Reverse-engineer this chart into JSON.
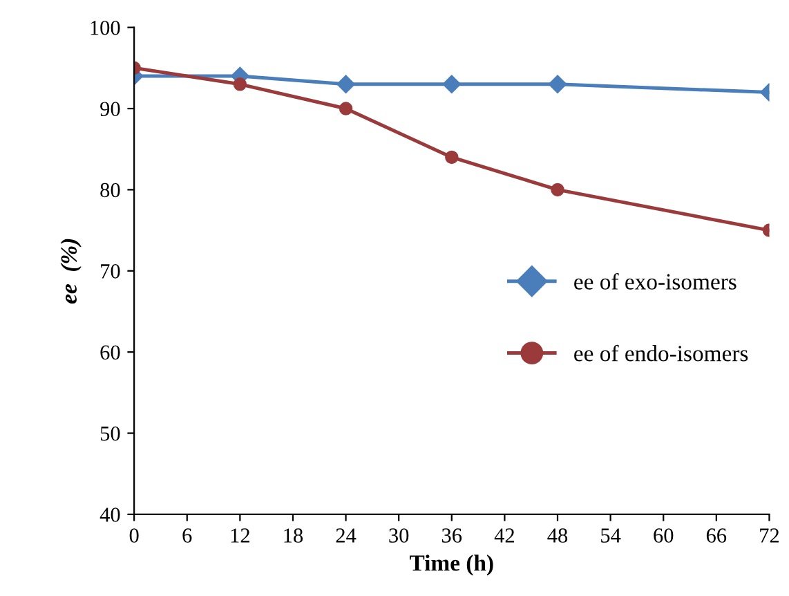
{
  "chart_data": {
    "type": "line",
    "xlabel": "Time (h)",
    "ylabel": "ee  (%)",
    "x": [
      0,
      12,
      24,
      36,
      48,
      72
    ],
    "series": [
      {
        "name": "ee of exo-isomers",
        "color": "#4a7ebb",
        "marker": "diamond",
        "values": [
          94,
          94,
          93,
          93,
          93,
          92
        ]
      },
      {
        "name": "ee of endo-isomers",
        "color": "#9b3a3a",
        "marker": "circle",
        "values": [
          95,
          93,
          90,
          84,
          80,
          75
        ]
      }
    ],
    "xlim": [
      0,
      72
    ],
    "xticks": [
      0,
      6,
      12,
      18,
      24,
      30,
      36,
      42,
      48,
      54,
      60,
      66,
      72
    ],
    "ylim": [
      40,
      100
    ],
    "yticks": [
      40,
      50,
      60,
      70,
      80,
      90,
      100
    ],
    "grid": false,
    "legend": "center right",
    "line_style": "solid"
  }
}
